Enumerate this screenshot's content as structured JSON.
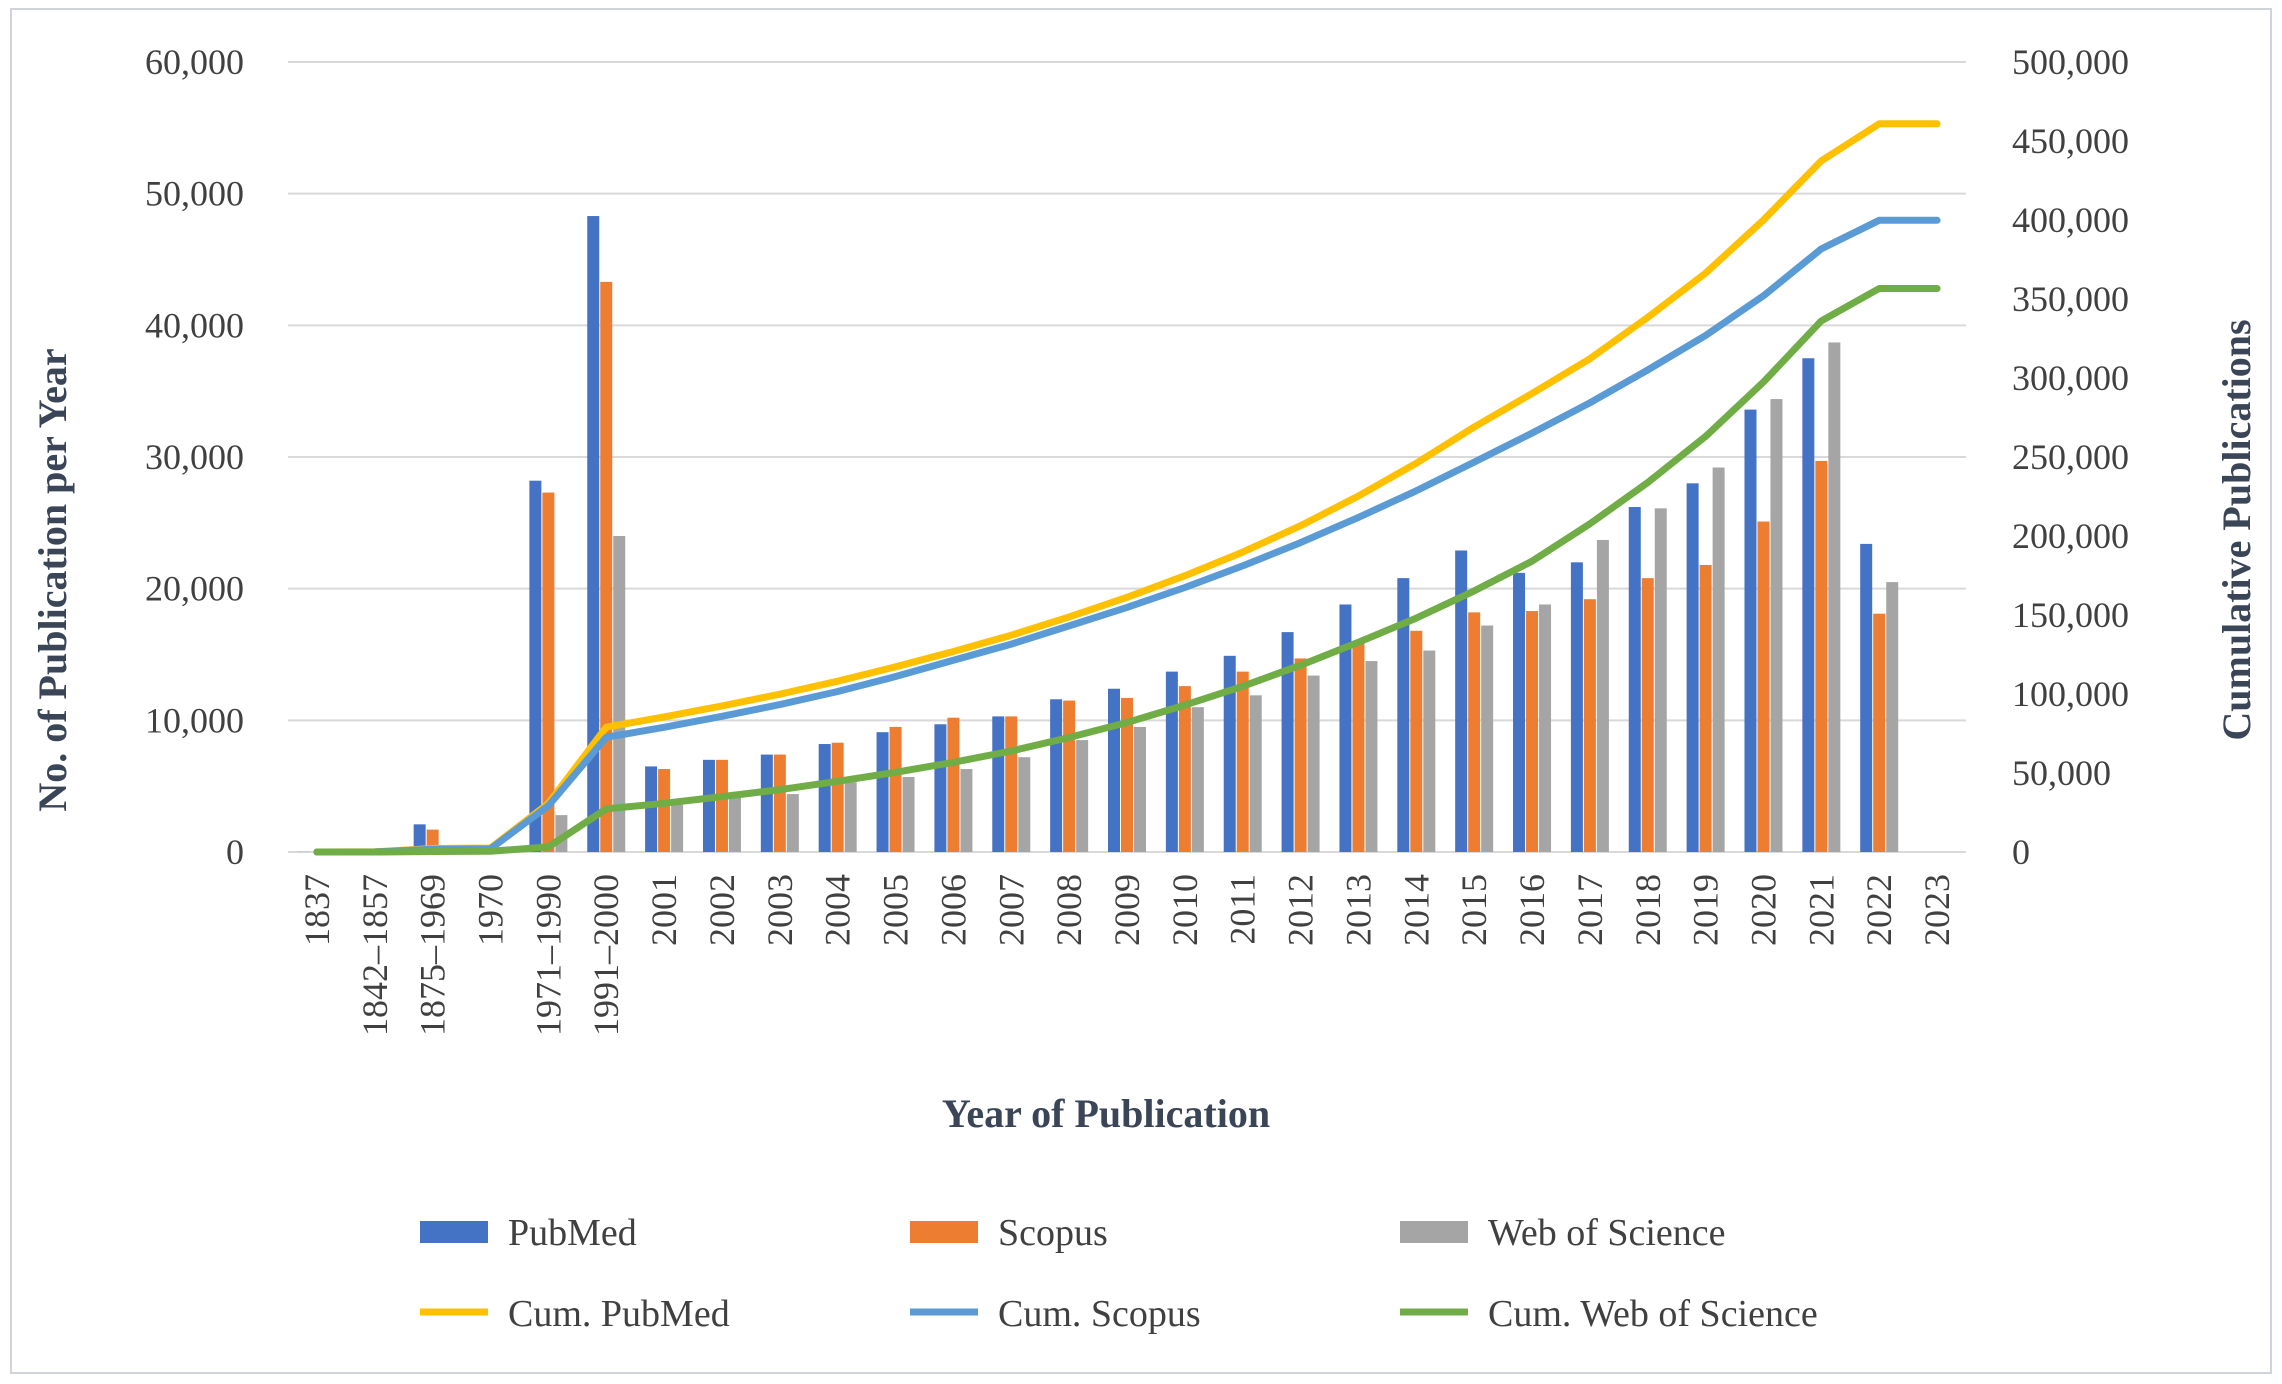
{
  "chart_data": {
    "type": "bar",
    "combo": "bar + line (secondary axis)",
    "title": "",
    "xlabel": "Year of Publication",
    "ylabel": "No. of Publication per Year",
    "y2label": "Cumulative Publications",
    "ylim": [
      0,
      60000
    ],
    "y2lim": [
      0,
      500000
    ],
    "yticks": [
      "0",
      "10,000",
      "20,000",
      "30,000",
      "40,000",
      "50,000",
      "60,000"
    ],
    "y2ticks": [
      "0",
      "50,000",
      "100,000",
      "150,000",
      "200,000",
      "250,000",
      "300,000",
      "350,000",
      "400,000",
      "450,000",
      "500,000"
    ],
    "grid": true,
    "legend_position": "bottom",
    "categories": [
      "1837",
      "1842–1857",
      "1875–1969",
      "1970",
      "1971–1990",
      "1991–2000",
      "2001",
      "2002",
      "2003",
      "2004",
      "2005",
      "2006",
      "2007",
      "2008",
      "2009",
      "2010",
      "2011",
      "2012",
      "2013",
      "2014",
      "2015",
      "2016",
      "2017",
      "2018",
      "2019",
      "2020",
      "2021",
      "2022",
      "2023"
    ],
    "bar_series": [
      {
        "name": "PubMed",
        "color": "#4472c4",
        "values": [
          10,
          50,
          2100,
          300,
          28200,
          48300,
          6500,
          7000,
          7400,
          8200,
          9100,
          9700,
          10300,
          11600,
          12400,
          13700,
          14900,
          16700,
          18800,
          20800,
          22900,
          21200,
          22000,
          26200,
          28000,
          33600,
          37500,
          23400,
          0
        ]
      },
      {
        "name": "Scopus",
        "color": "#ed7d31",
        "values": [
          0,
          20,
          1700,
          250,
          27300,
          43300,
          6300,
          7000,
          7400,
          8300,
          9500,
          10200,
          10300,
          11500,
          11700,
          12600,
          13700,
          14700,
          16000,
          16800,
          18200,
          18300,
          19200,
          20800,
          21800,
          25100,
          29700,
          18100,
          0
        ]
      },
      {
        "name": "Web of Science",
        "color": "#a5a5a5",
        "values": [
          0,
          0,
          300,
          150,
          2800,
          24000,
          3600,
          4200,
          4400,
          5300,
          5700,
          6300,
          7200,
          8500,
          9500,
          11000,
          11900,
          13400,
          14500,
          15300,
          17200,
          18800,
          23700,
          26100,
          29200,
          34400,
          38700,
          20500,
          0
        ]
      }
    ],
    "line_series": [
      {
        "name": "Cum. PubMed",
        "color": "#ffc000",
        "values": [
          0,
          100,
          2200,
          2500,
          30700,
          79000,
          85500,
          92500,
          99900,
          108100,
          117200,
          126900,
          137200,
          148800,
          161200,
          174900,
          189800,
          206500,
          225300,
          246100,
          269000,
          290200,
          312200,
          338400,
          366400,
          400000,
          437500,
          460900,
          460900
        ]
      },
      {
        "name": "Cum. Scopus",
        "color": "#5b9bd5",
        "values": [
          0,
          50,
          1800,
          2000,
          29300,
          72600,
          78900,
          85900,
          93300,
          101600,
          111100,
          121300,
          131600,
          143100,
          154800,
          167400,
          181100,
          195800,
          211800,
          228600,
          246800,
          265100,
          284300,
          305100,
          326900,
          352000,
          381700,
          399800,
          399800
        ]
      },
      {
        "name": "Cum. Web of Science",
        "color": "#70ad47",
        "values": [
          0,
          0,
          300,
          450,
          3250,
          27250,
          30850,
          35050,
          39450,
          44750,
          50450,
          56750,
          63950,
          72450,
          81950,
          92950,
          104850,
          118250,
          132750,
          148050,
          165250,
          184050,
          207750,
          233850,
          263050,
          297450,
          336150,
          356650,
          356650
        ]
      }
    ]
  }
}
